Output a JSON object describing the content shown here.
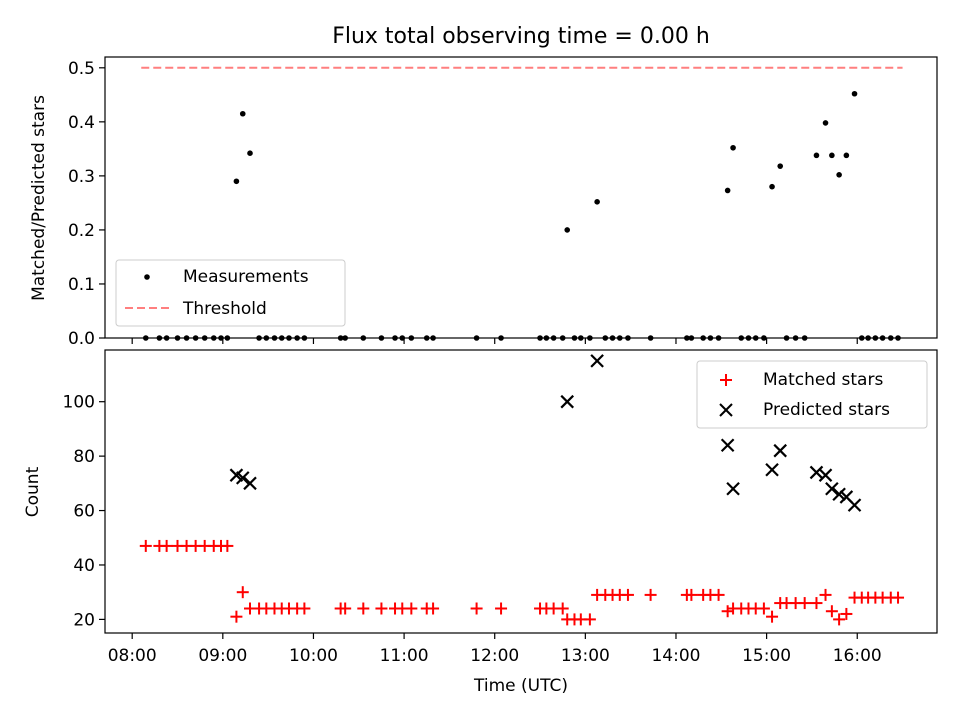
{
  "chart_data": [
    {
      "type": "scatter",
      "title": "Flux total observing time = 0.00 h",
      "ylabel": "Matched/Predicted stars",
      "xlabel": "",
      "ylim": [
        0,
        0.52
      ],
      "yticks": [
        "0.0",
        "0.1",
        "0.2",
        "0.3",
        "0.4",
        "0.5"
      ],
      "grid": false,
      "legend_position": "lower-left",
      "legend": [
        "Measurements",
        "Threshold"
      ],
      "threshold": {
        "name": "Threshold",
        "value": 0.5,
        "x_start": 8.1,
        "x_end": 16.5,
        "color": "#ff7f7f"
      },
      "series": [
        {
          "name": "Measurements",
          "color": "#000000",
          "points": [
            [
              8.15,
              0
            ],
            [
              8.3,
              0
            ],
            [
              8.38,
              0
            ],
            [
              8.5,
              0
            ],
            [
              8.6,
              0
            ],
            [
              8.7,
              0
            ],
            [
              8.8,
              0
            ],
            [
              8.9,
              0
            ],
            [
              8.98,
              0
            ],
            [
              9.05,
              0
            ],
            [
              9.15,
              0.29
            ],
            [
              9.22,
              0.415
            ],
            [
              9.3,
              0.342
            ],
            [
              9.4,
              0
            ],
            [
              9.48,
              0
            ],
            [
              9.57,
              0
            ],
            [
              9.65,
              0
            ],
            [
              9.73,
              0
            ],
            [
              9.82,
              0
            ],
            [
              9.9,
              0
            ],
            [
              10.3,
              0
            ],
            [
              10.35,
              0
            ],
            [
              10.55,
              0
            ],
            [
              10.75,
              0
            ],
            [
              10.9,
              0
            ],
            [
              10.98,
              0
            ],
            [
              11.08,
              0
            ],
            [
              11.25,
              0
            ],
            [
              11.32,
              0
            ],
            [
              11.8,
              0
            ],
            [
              12.07,
              0
            ],
            [
              12.5,
              0
            ],
            [
              12.57,
              0
            ],
            [
              12.65,
              0
            ],
            [
              12.75,
              0
            ],
            [
              12.8,
              0.2
            ],
            [
              12.88,
              0
            ],
            [
              12.95,
              0
            ],
            [
              13.05,
              0
            ],
            [
              13.13,
              0.252
            ],
            [
              13.22,
              0
            ],
            [
              13.3,
              0
            ],
            [
              13.38,
              0
            ],
            [
              13.47,
              0
            ],
            [
              13.72,
              0
            ],
            [
              14.12,
              0
            ],
            [
              14.17,
              0
            ],
            [
              14.3,
              0
            ],
            [
              14.38,
              0
            ],
            [
              14.47,
              0
            ],
            [
              14.57,
              0.273
            ],
            [
              14.63,
              0.352
            ],
            [
              14.72,
              0
            ],
            [
              14.8,
              0
            ],
            [
              14.88,
              0
            ],
            [
              14.97,
              0
            ],
            [
              15.06,
              0.28
            ],
            [
              15.15,
              0.318
            ],
            [
              15.22,
              0
            ],
            [
              15.32,
              0
            ],
            [
              15.42,
              0
            ],
            [
              15.55,
              0.338
            ],
            [
              15.65,
              0.398
            ],
            [
              15.72,
              0.338
            ],
            [
              15.8,
              0.302
            ],
            [
              15.88,
              0.338
            ],
            [
              15.97,
              0.452
            ],
            [
              16.05,
              0
            ],
            [
              16.12,
              0
            ],
            [
              16.2,
              0
            ],
            [
              16.28,
              0
            ],
            [
              16.37,
              0
            ],
            [
              16.45,
              0
            ]
          ]
        }
      ]
    },
    {
      "type": "scatter",
      "title": "",
      "xlabel": "Time (UTC)",
      "ylabel": "Count",
      "ylim": [
        15,
        119
      ],
      "yticks": [
        "20",
        "40",
        "60",
        "80",
        "100"
      ],
      "xticks": [
        "08:00",
        "09:00",
        "10:00",
        "11:00",
        "12:00",
        "13:00",
        "14:00",
        "15:00",
        "16:00"
      ],
      "grid": false,
      "legend_position": "top-right",
      "legend": [
        "Matched stars",
        "Predicted stars"
      ],
      "series": [
        {
          "name": "Matched stars",
          "marker": "+",
          "color": "#ff0000",
          "points": [
            [
              8.15,
              47
            ],
            [
              8.3,
              47
            ],
            [
              8.38,
              47
            ],
            [
              8.5,
              47
            ],
            [
              8.6,
              47
            ],
            [
              8.7,
              47
            ],
            [
              8.8,
              47
            ],
            [
              8.9,
              47
            ],
            [
              8.98,
              47
            ],
            [
              9.05,
              47
            ],
            [
              9.15,
              21
            ],
            [
              9.22,
              30
            ],
            [
              9.3,
              24
            ],
            [
              9.4,
              24
            ],
            [
              9.48,
              24
            ],
            [
              9.57,
              24
            ],
            [
              9.65,
              24
            ],
            [
              9.73,
              24
            ],
            [
              9.82,
              24
            ],
            [
              9.9,
              24
            ],
            [
              10.3,
              24
            ],
            [
              10.35,
              24
            ],
            [
              10.55,
              24
            ],
            [
              10.75,
              24
            ],
            [
              10.9,
              24
            ],
            [
              10.98,
              24
            ],
            [
              11.08,
              24
            ],
            [
              11.25,
              24
            ],
            [
              11.32,
              24
            ],
            [
              11.8,
              24
            ],
            [
              12.07,
              24
            ],
            [
              12.5,
              24
            ],
            [
              12.57,
              24
            ],
            [
              12.65,
              24
            ],
            [
              12.75,
              24
            ],
            [
              12.8,
              20
            ],
            [
              12.88,
              20
            ],
            [
              12.95,
              20
            ],
            [
              13.05,
              20
            ],
            [
              13.13,
              29
            ],
            [
              13.22,
              29
            ],
            [
              13.3,
              29
            ],
            [
              13.38,
              29
            ],
            [
              13.47,
              29
            ],
            [
              13.72,
              29
            ],
            [
              14.12,
              29
            ],
            [
              14.17,
              29
            ],
            [
              14.3,
              29
            ],
            [
              14.38,
              29
            ],
            [
              14.47,
              29
            ],
            [
              14.57,
              23
            ],
            [
              14.63,
              24
            ],
            [
              14.72,
              24
            ],
            [
              14.8,
              24
            ],
            [
              14.88,
              24
            ],
            [
              14.97,
              24
            ],
            [
              15.06,
              21
            ],
            [
              15.15,
              26
            ],
            [
              15.22,
              26
            ],
            [
              15.32,
              26
            ],
            [
              15.42,
              26
            ],
            [
              15.55,
              26
            ],
            [
              15.65,
              29
            ],
            [
              15.72,
              23
            ],
            [
              15.8,
              20
            ],
            [
              15.88,
              22
            ],
            [
              15.97,
              28
            ],
            [
              16.05,
              28
            ],
            [
              16.12,
              28
            ],
            [
              16.2,
              28
            ],
            [
              16.28,
              28
            ],
            [
              16.37,
              28
            ],
            [
              16.45,
              28
            ]
          ]
        },
        {
          "name": "Predicted stars",
          "marker": "x",
          "color": "#000000",
          "points": [
            [
              9.15,
              73
            ],
            [
              9.22,
              72
            ],
            [
              9.3,
              70
            ],
            [
              12.8,
              100
            ],
            [
              13.13,
              115
            ],
            [
              14.57,
              84
            ],
            [
              14.63,
              68
            ],
            [
              15.06,
              75
            ],
            [
              15.15,
              82
            ],
            [
              15.55,
              74
            ],
            [
              15.65,
              73
            ],
            [
              15.72,
              68
            ],
            [
              15.8,
              66
            ],
            [
              15.88,
              65
            ],
            [
              15.97,
              62
            ]
          ]
        }
      ]
    }
  ]
}
